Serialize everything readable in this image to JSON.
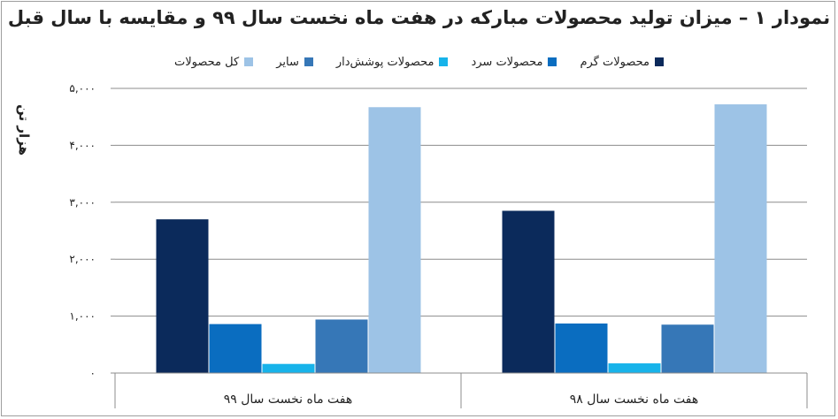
{
  "title": "نمودار ۱ – میزان تولید محصولات مبارکه در هفت ماه نخست سال ۹۹ و مقایسه با سال قبل",
  "legend": [
    {
      "label": "محصولات گرم",
      "color": "#0b2a5b"
    },
    {
      "label": "محصولات سرد",
      "color": "#0a6dc0"
    },
    {
      "label": "محصولات پوشش‌دار",
      "color": "#17b3ea"
    },
    {
      "label": "سایر",
      "color": "#3677b7"
    },
    {
      "label": "کل محصولات",
      "color": "#9dc3e6"
    }
  ],
  "chart_data": {
    "type": "bar",
    "title": "نمودار ۱ – میزان تولید محصولات مبارکه در هفت ماه نخست سال ۹۹ و مقایسه با سال قبل",
    "ylabel": "هزار تن",
    "xlabel": "",
    "ylim": [
      0,
      5000
    ],
    "yticks": [
      0,
      1000,
      2000,
      3000,
      4000,
      5000
    ],
    "ytick_labels": [
      "۰",
      "۱,۰۰۰",
      "۲,۰۰۰",
      "۳,۰۰۰",
      "۴,۰۰۰",
      "۵,۰۰۰"
    ],
    "categories": [
      "هفت ماه نخست سال ۹۹",
      "هفت ماه نخست سال ۹۸"
    ],
    "series": [
      {
        "name": "محصولات گرم",
        "values": [
          2700,
          2850
        ]
      },
      {
        "name": "محصولات سرد",
        "values": [
          860,
          870
        ]
      },
      {
        "name": "محصولات پوشش‌دار",
        "values": [
          160,
          170
        ]
      },
      {
        "name": "سایر",
        "values": [
          940,
          850
        ]
      },
      {
        "name": "کل محصولات",
        "values": [
          4670,
          4720
        ]
      }
    ],
    "grid": true,
    "legend_position": "top"
  }
}
